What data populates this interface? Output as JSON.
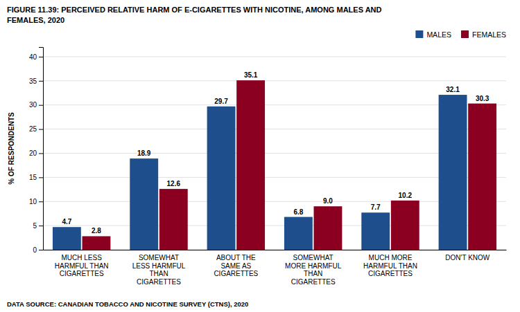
{
  "chart_data": {
    "type": "bar",
    "title": "FIGURE 11.39: PERCEIVED RELATIVE HARM OF E-CIGARETTES WITH NICOTINE, AMONG MALES AND\nFEMALES, 2020",
    "categories": [
      "MUCH LESS\nHARMFUL THAN\nCIGARETTES",
      "SOMEWHAT\nLESS HARMFUL\nTHAN\nCIGARETTES",
      "ABOUT THE\nSAME AS\nCIGARETTES",
      "SOMEWHAT\nMORE HARMFUL\nTHAN\nCIGARETTES",
      "MUCH MORE\nHARMFUL THAN\nCIGARETTES",
      "DON'T KNOW"
    ],
    "series": [
      {
        "name": "MALES",
        "color": "#1f4e8c",
        "values": [
          4.7,
          18.9,
          29.7,
          6.8,
          7.7,
          32.1
        ]
      },
      {
        "name": "FEMALES",
        "color": "#8b0020",
        "values": [
          2.8,
          12.6,
          35.1,
          9.0,
          10.2,
          30.3
        ],
        "value_labels": [
          "2.8",
          "12.6",
          "35.1",
          "9.0",
          "10.2",
          "30.3"
        ]
      }
    ],
    "y_label": "% OF RESPONDENTS",
    "ylim": [
      0,
      42
    ],
    "yticks": [
      0,
      5,
      10,
      15,
      20,
      25,
      30,
      35,
      40
    ],
    "grid": true,
    "legend": "upper-right",
    "data_labels": true,
    "annotations": [
      "DATA SOURCE: CANADIAN TOBACCO AND NICOTINE SURVEY (CTNS), 2020"
    ]
  }
}
